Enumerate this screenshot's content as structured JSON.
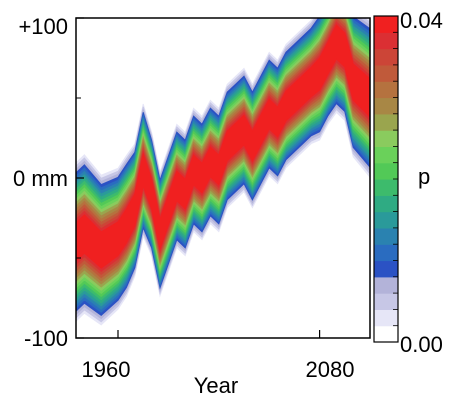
{
  "chart_data": {
    "type": "heatmap",
    "title": "",
    "xlabel": "Year",
    "ylabel": "",
    "xlim": [
      1935,
      2110
    ],
    "ylim": [
      -100,
      100
    ],
    "x_ticks": [
      {
        "value": 1960,
        "label": "1960"
      },
      {
        "value": 2080,
        "label": "2080"
      }
    ],
    "y_ticks": [
      {
        "value": 100,
        "label": "+100"
      },
      {
        "value": 0,
        "label": "0 mm"
      },
      {
        "value": -100,
        "label": "-100"
      }
    ],
    "colorbar": {
      "label": "p",
      "min": 0.0,
      "max": 0.04,
      "min_label": "0.00",
      "max_label": "0.04",
      "colors": [
        "#ffffff",
        "#e6e6f7",
        "#c7c7e6",
        "#b3b3d9",
        "#2b52c4",
        "#2a6cc0",
        "#2a82b0",
        "#2a9a9a",
        "#2fab83",
        "#3dbb6c",
        "#52c957",
        "#6ad15a",
        "#8acb5e",
        "#9aa54e",
        "#a88745",
        "#b5723f",
        "#c05a3a",
        "#cc4537",
        "#db2f33",
        "#f02020"
      ]
    },
    "centerline": {
      "x": [
        1935,
        1940,
        1950,
        1960,
        1965,
        1970,
        1975,
        1980,
        1985,
        1990,
        1995,
        2000,
        2005,
        2010,
        2015,
        2020,
        2025,
        2030,
        2035,
        2040,
        2045,
        2050,
        2055,
        2060,
        2065,
        2070,
        2075,
        2080,
        2085,
        2090,
        2095,
        2100,
        2110
      ],
      "y": [
        -40,
        -35,
        -45,
        -38,
        -30,
        -20,
        5,
        -10,
        -35,
        -20,
        -5,
        -10,
        5,
        0,
        10,
        5,
        20,
        25,
        30,
        20,
        30,
        40,
        35,
        45,
        50,
        55,
        60,
        65,
        75,
        85,
        80,
        60,
        50
      ],
      "red_halfwidth": [
        18,
        18,
        17,
        16,
        16,
        15,
        15,
        14,
        14,
        14,
        14,
        14,
        14,
        14,
        14,
        14,
        14,
        14,
        14,
        14,
        14,
        14,
        14,
        14,
        14,
        14,
        14,
        15,
        15,
        16,
        16,
        17,
        18
      ]
    }
  }
}
